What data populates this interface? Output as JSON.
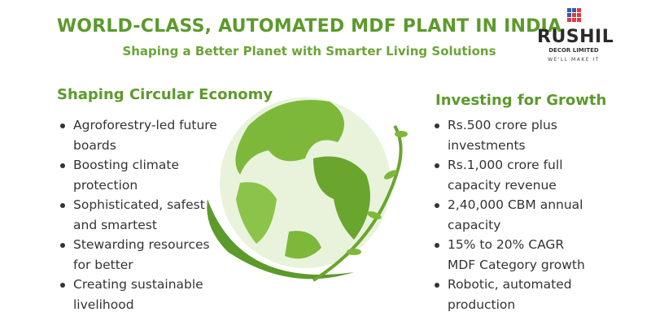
{
  "header": {
    "title": "WORLD-CLASS, AUTOMATED MDF PLANT IN INDIA",
    "subtitle": "Shaping a Better Planet with Smarter Living Solutions"
  },
  "logo": {
    "name": "RUSHIL",
    "sub": "DECOR LIMITED",
    "tagline": "WE'LL MAKE IT",
    "colors": {
      "blue": "#2f5db0",
      "red": "#e03b3b"
    }
  },
  "left": {
    "heading": "Shaping Circular Economy",
    "items": [
      "Agroforestry-led future boards",
      "Boosting climate protection",
      "Sophisticated, safest and smartest",
      "Stewarding resources for better",
      "Creating sustainable livelihood"
    ]
  },
  "right": {
    "heading": "Investing for Growth",
    "items": [
      "Rs.500 crore plus investments",
      "Rs.1,000 crore full capacity revenue",
      "2,40,000 CBM annual capacity",
      "15% to 20% CAGR MDF Category growth",
      "Robotic, automated production"
    ]
  },
  "colors": {
    "accent": "#5c9a2b"
  },
  "illustration": "green-globe-icon"
}
